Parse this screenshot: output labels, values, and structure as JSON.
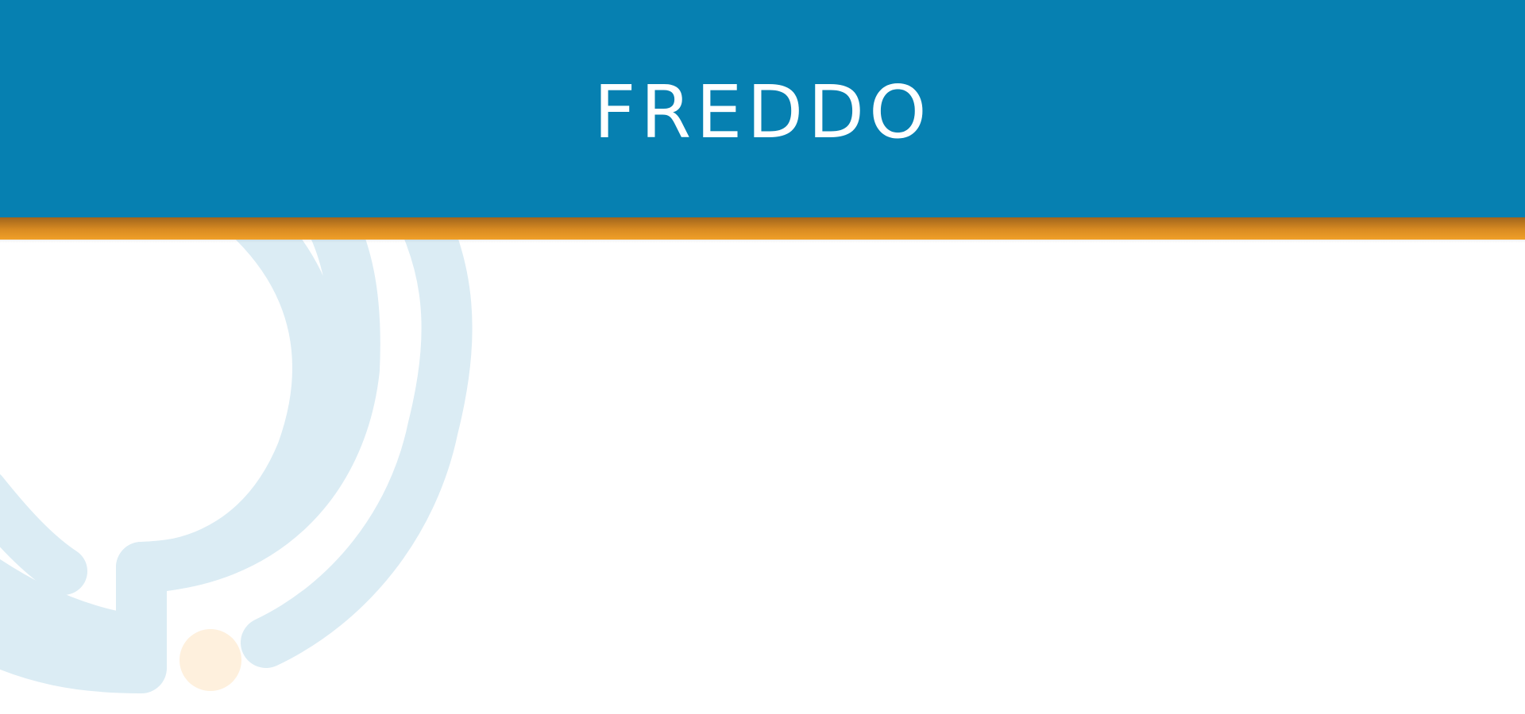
{
  "header": {
    "title": "FREDDO"
  },
  "colors": {
    "header_bg": "#0680b1",
    "accent_bar": "#f0a028",
    "watermark_blue": "#dbecf4",
    "watermark_orange": "#fef0dd",
    "page_bg": "#ffffff"
  },
  "icons": {
    "background_logo": "chat-bubble-rings-watermark-icon"
  }
}
